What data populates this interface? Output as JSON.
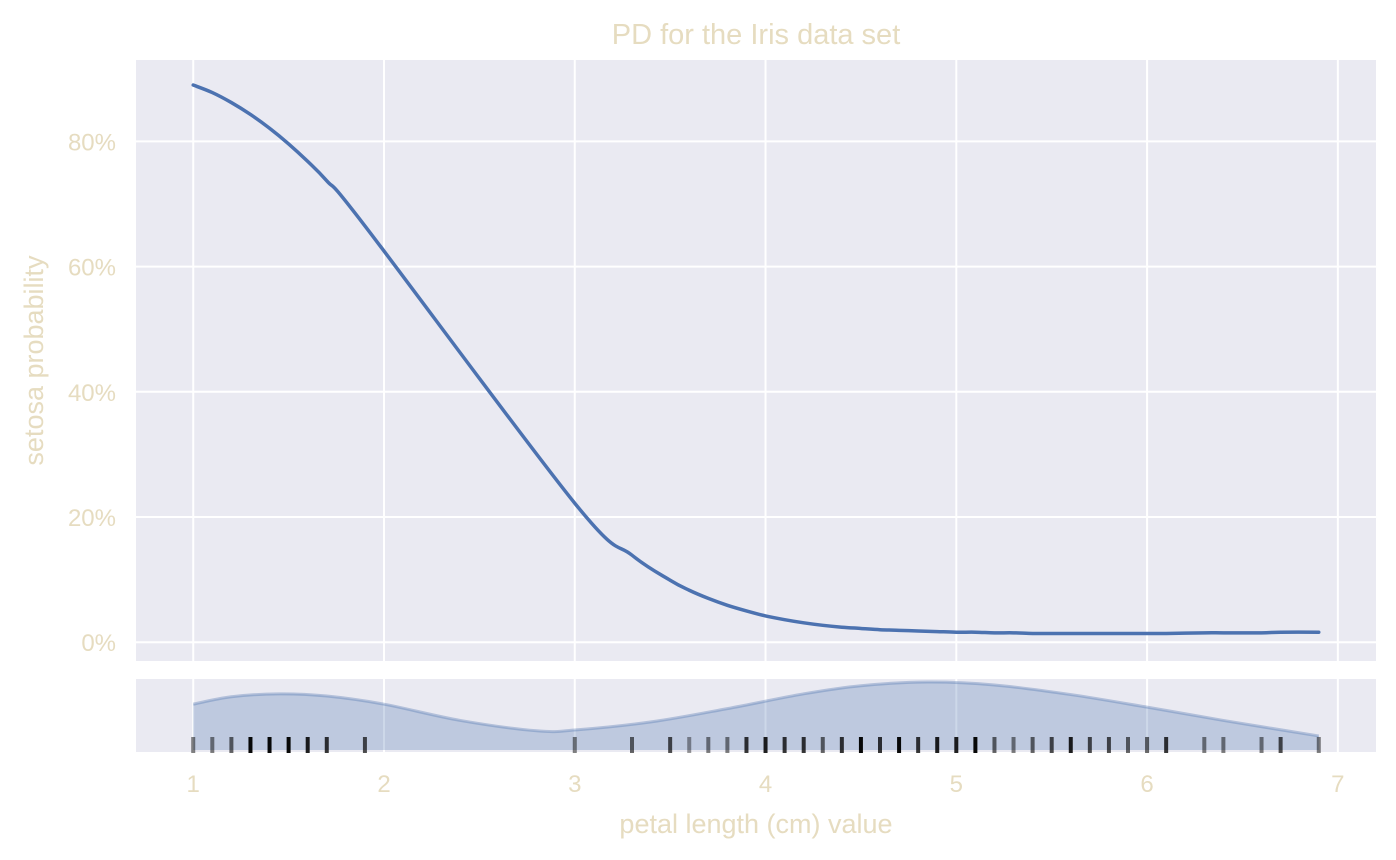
{
  "colors": {
    "background": "#ffffff",
    "panel": "#eaeaf2",
    "grid": "#ffffff",
    "text": "#e6dcc0",
    "line": "#4c72b0",
    "density_fill": "#4c72b0",
    "rug": "#000000"
  },
  "chart_data": {
    "type": "line",
    "title": "PD for the Iris data set",
    "xlabel": "petal length (cm) value",
    "ylabel": "setosa probability",
    "xlim": [
      0.7,
      7.2
    ],
    "ylim": [
      -0.03,
      0.93
    ],
    "x_ticks": [
      1,
      2,
      3,
      4,
      5,
      6,
      7
    ],
    "x_tick_labels": [
      "1",
      "2",
      "3",
      "4",
      "5",
      "6",
      "7"
    ],
    "y_ticks": [
      0,
      0.2,
      0.4,
      0.6,
      0.8
    ],
    "y_tick_labels": [
      "0%",
      "20%",
      "40%",
      "60%",
      "80%"
    ],
    "grid": true,
    "series": [
      {
        "x": [
          1.0,
          1.1,
          1.2,
          1.3,
          1.4,
          1.5,
          1.6,
          1.7,
          1.9,
          3.0,
          3.3,
          3.5,
          3.6,
          3.7,
          3.8,
          3.9,
          4.0,
          4.1,
          4.2,
          4.3,
          4.4,
          4.5,
          4.6,
          4.7,
          4.8,
          4.9,
          5.0,
          5.1,
          5.2,
          5.3,
          5.4,
          5.5,
          5.6,
          5.7,
          5.8,
          5.9,
          6.0,
          6.1,
          6.3,
          6.4,
          6.6,
          6.7,
          6.9
        ],
        "y": [
          0.89,
          0.878,
          0.862,
          0.843,
          0.821,
          0.796,
          0.768,
          0.737,
          0.665,
          0.222,
          0.139,
          0.099,
          0.083,
          0.07,
          0.059,
          0.05,
          0.042,
          0.036,
          0.031,
          0.027,
          0.024,
          0.022,
          0.02,
          0.019,
          0.018,
          0.017,
          0.016,
          0.016,
          0.015,
          0.015,
          0.014,
          0.014,
          0.014,
          0.014,
          0.014,
          0.014,
          0.014,
          0.014,
          0.015,
          0.015,
          0.015,
          0.016,
          0.016
        ]
      }
    ],
    "density": {
      "x": [
        1.0,
        1.2,
        1.45,
        1.7,
        2.0,
        2.4,
        2.8,
        3.0,
        3.4,
        3.8,
        4.2,
        4.5,
        4.85,
        5.2,
        5.6,
        6.0,
        6.4,
        6.9
      ],
      "y": [
        0.62,
        0.72,
        0.76,
        0.73,
        0.62,
        0.4,
        0.26,
        0.27,
        0.38,
        0.56,
        0.76,
        0.87,
        0.92,
        0.88,
        0.75,
        0.58,
        0.4,
        0.19
      ]
    },
    "rug": [
      {
        "x": 1.0,
        "a": 0.5
      },
      {
        "x": 1.1,
        "a": 0.5
      },
      {
        "x": 1.2,
        "a": 0.6
      },
      {
        "x": 1.3,
        "a": 1.0
      },
      {
        "x": 1.4,
        "a": 1.0
      },
      {
        "x": 1.5,
        "a": 1.0
      },
      {
        "x": 1.6,
        "a": 0.9
      },
      {
        "x": 1.7,
        "a": 0.8
      },
      {
        "x": 1.9,
        "a": 0.7
      },
      {
        "x": 3.0,
        "a": 0.5
      },
      {
        "x": 3.3,
        "a": 0.6
      },
      {
        "x": 3.5,
        "a": 0.7
      },
      {
        "x": 3.6,
        "a": 0.4
      },
      {
        "x": 3.7,
        "a": 0.5
      },
      {
        "x": 3.8,
        "a": 0.5
      },
      {
        "x": 3.9,
        "a": 0.8
      },
      {
        "x": 4.0,
        "a": 0.9
      },
      {
        "x": 4.1,
        "a": 0.8
      },
      {
        "x": 4.2,
        "a": 0.8
      },
      {
        "x": 4.3,
        "a": 0.6
      },
      {
        "x": 4.4,
        "a": 0.8
      },
      {
        "x": 4.5,
        "a": 1.0
      },
      {
        "x": 4.6,
        "a": 0.8
      },
      {
        "x": 4.7,
        "a": 1.0
      },
      {
        "x": 4.8,
        "a": 0.8
      },
      {
        "x": 4.9,
        "a": 0.9
      },
      {
        "x": 5.0,
        "a": 0.9
      },
      {
        "x": 5.1,
        "a": 1.0
      },
      {
        "x": 5.2,
        "a": 0.6
      },
      {
        "x": 5.3,
        "a": 0.5
      },
      {
        "x": 5.4,
        "a": 0.6
      },
      {
        "x": 5.5,
        "a": 0.7
      },
      {
        "x": 5.6,
        "a": 0.9
      },
      {
        "x": 5.7,
        "a": 0.7
      },
      {
        "x": 5.8,
        "a": 0.7
      },
      {
        "x": 5.9,
        "a": 0.6
      },
      {
        "x": 6.0,
        "a": 0.6
      },
      {
        "x": 6.1,
        "a": 0.8
      },
      {
        "x": 6.3,
        "a": 0.5
      },
      {
        "x": 6.4,
        "a": 0.5
      },
      {
        "x": 6.6,
        "a": 0.5
      },
      {
        "x": 6.7,
        "a": 0.7
      },
      {
        "x": 6.9,
        "a": 0.5
      }
    ]
  }
}
